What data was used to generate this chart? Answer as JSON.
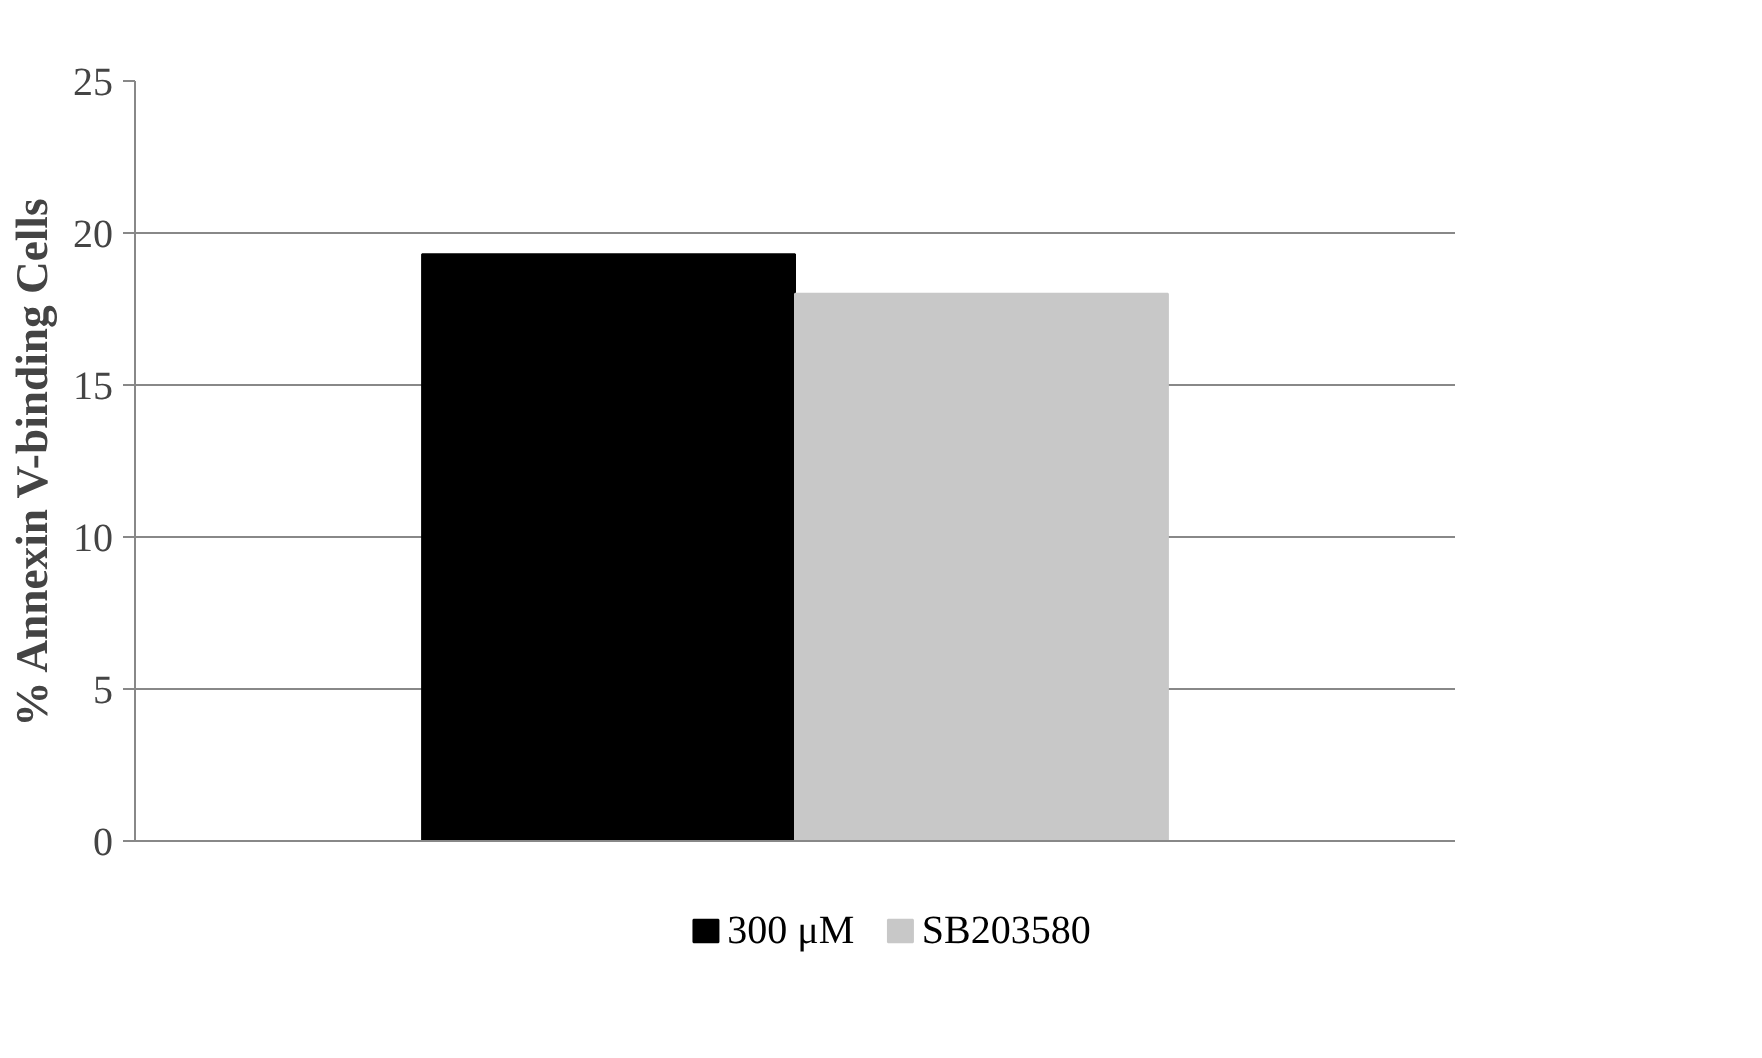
{
  "chart_data": {
    "type": "bar",
    "ylabel": "% Annexin V-binding Cells",
    "categories": [
      null
    ],
    "series": [
      {
        "name": "300 μM",
        "color": "#000000",
        "values": [
          19.3
        ]
      },
      {
        "name": "SB203580",
        "color": "#c8c8c8",
        "values": [
          18.0
        ]
      }
    ],
    "ylim": [
      0,
      25
    ],
    "yticks": [
      0,
      5,
      10,
      15,
      20,
      25
    ],
    "grid": "y",
    "legend": "bottom"
  }
}
